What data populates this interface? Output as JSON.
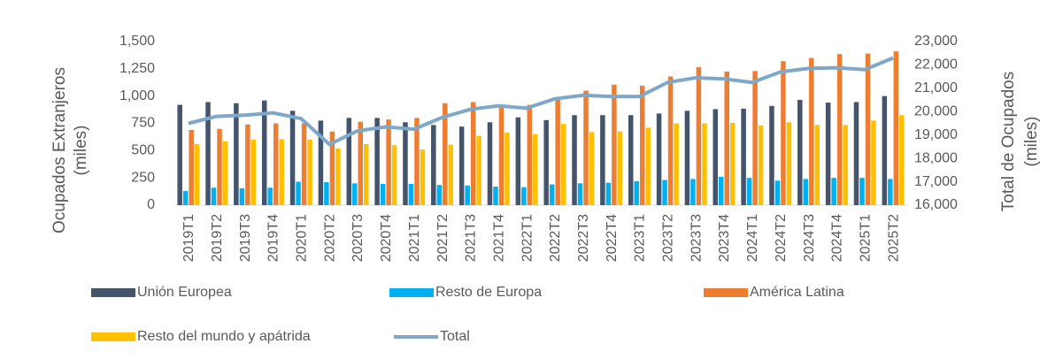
{
  "chart_data": {
    "type": "bar_line",
    "categories": [
      "2019T1",
      "2019T2",
      "2019T3",
      "2019T4",
      "2020T1",
      "2020T2",
      "2020T3",
      "2020T4",
      "2021T1",
      "2021T2",
      "2021T3",
      "2021T4",
      "2022T1",
      "2022T2",
      "2022T3",
      "2022T4",
      "2023T1",
      "2023T2",
      "2023T3",
      "2023T4",
      "2024T1",
      "2024T2",
      "2024T3",
      "2024T4",
      "2025T1",
      "2025T2"
    ],
    "series": [
      {
        "name": "Unión Europea",
        "color": "#44546a",
        "values": [
          920,
          945,
          935,
          960,
          865,
          775,
          800,
          800,
          760,
          735,
          720,
          760,
          805,
          780,
          825,
          825,
          825,
          840,
          865,
          880,
          885,
          910,
          965,
          940,
          945,
          1000
        ]
      },
      {
        "name": "Resto de Europa",
        "color": "#00b0f0",
        "values": [
          130,
          160,
          155,
          160,
          215,
          210,
          200,
          195,
          195,
          185,
          180,
          170,
          165,
          190,
          200,
          205,
          220,
          230,
          240,
          260,
          250,
          225,
          240,
          250,
          250,
          240
        ]
      },
      {
        "name": "América Latina",
        "color": "#ed7d31",
        "values": [
          690,
          700,
          740,
          750,
          750,
          675,
          765,
          785,
          800,
          935,
          945,
          905,
          920,
          975,
          1050,
          1105,
          1095,
          1180,
          1265,
          1225,
          1230,
          1320,
          1350,
          1385,
          1390,
          1410
        ]
      },
      {
        "name": "Resto del mundo y apátrida",
        "color": "#ffc000",
        "values": [
          560,
          585,
          600,
          605,
          600,
          520,
          560,
          550,
          510,
          555,
          635,
          665,
          650,
          745,
          670,
          675,
          710,
          750,
          750,
          755,
          730,
          760,
          735,
          735,
          775,
          825
        ]
      },
      {
        "name": "Total",
        "color": "#7fa7c9",
        "axis": "y2",
        "values": [
          19500,
          19800,
          19850,
          19950,
          19700,
          18600,
          19180,
          19350,
          19250,
          19750,
          20100,
          20250,
          20150,
          20550,
          20700,
          20650,
          20650,
          21250,
          21450,
          21400,
          21250,
          21700,
          21850,
          21880,
          21800,
          22300
        ]
      }
    ],
    "y_label": [
      "Ocupados Extranjeros",
      "(miles)"
    ],
    "y2_label": [
      "Total de Ocupados",
      "(miles)"
    ],
    "ylim": [
      0,
      1500
    ],
    "yticks": [
      0,
      250,
      500,
      750,
      {
        "value": 1000,
        "label": "1,000"
      },
      {
        "value": 1250,
        "label": "1,250"
      },
      {
        "value": 1500,
        "label": "1,500"
      }
    ],
    "y2lim": [
      16000,
      23000
    ],
    "y2ticks": [
      {
        "value": 16000,
        "label": "16,000"
      },
      {
        "value": 17000,
        "label": "17,000"
      },
      {
        "value": 18000,
        "label": "18,000"
      },
      {
        "value": 19000,
        "label": "19,000"
      },
      {
        "value": 20000,
        "label": "20,000"
      },
      {
        "value": 21000,
        "label": "21,000"
      },
      {
        "value": 22000,
        "label": "22,000"
      },
      {
        "value": 23000,
        "label": "23,000"
      }
    ],
    "legend": "bottom"
  }
}
